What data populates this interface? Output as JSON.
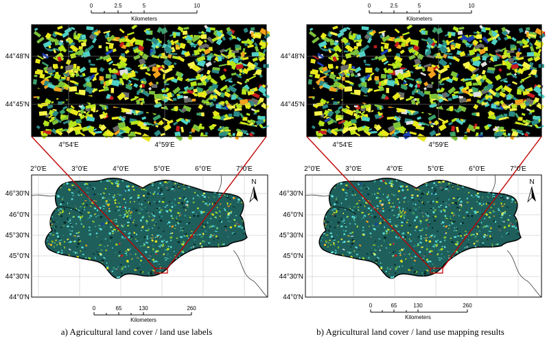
{
  "panels": [
    {
      "caption": "a) Agricultural land cover / land use labels",
      "inset": {
        "scale_ticks": [
          "0",
          "2.5",
          "5",
          "10"
        ],
        "scale_unit": "Kilometers",
        "lat_labels": [
          "44°48'N",
          "44°45'N"
        ],
        "lon_labels": [
          "4°54'E",
          "4°59'E"
        ]
      },
      "map": {
        "lon_labels": [
          "2°0'E",
          "3°0'E",
          "4°0'E",
          "5°0'E",
          "6°0'E",
          "7°0'E"
        ],
        "lat_labels": [
          "46°30'N",
          "46°0'N",
          "45°30'N",
          "45°0'N",
          "44°30'N",
          "44°0'N"
        ],
        "north_label": "N",
        "scale_ticks": [
          "0",
          "65",
          "130",
          "260"
        ],
        "scale_unit": "Kilometers"
      }
    },
    {
      "caption": "b) Agricultural land cover / land use mapping results",
      "inset": {
        "scale_ticks": [
          "0",
          "2.5",
          "5",
          "10"
        ],
        "scale_unit": "Kilometers",
        "lat_labels": [
          "44°48'N",
          "44°45'N"
        ],
        "lon_labels": [
          "4°54'E",
          "4°59'E"
        ]
      },
      "map": {
        "lon_labels": [
          "2°0'E",
          "3°0'E",
          "4°0'E",
          "5°0'E",
          "6°0'E",
          "7°0'E"
        ],
        "lat_labels": [
          "46°30'N",
          "46°0'N",
          "45°30'N",
          "45°0'N",
          "44°30'N",
          "44°0'N"
        ],
        "north_label": "N",
        "scale_ticks": [
          "0",
          "65",
          "130",
          "260"
        ],
        "scale_unit": "Kilometers"
      }
    }
  ],
  "colors": {
    "background": "#000000",
    "callout_lines": "#c00000",
    "crop_palette": [
      "#b8e61a",
      "#2b8a86",
      "#e8e81c",
      "#4fd1c5",
      "#7cc23a",
      "#f4a21c",
      "#3aa06a",
      "#e0e0e0",
      "#6a6a6a",
      "#c81e1e",
      "#1a3fb5",
      "#f7f34a"
    ]
  }
}
